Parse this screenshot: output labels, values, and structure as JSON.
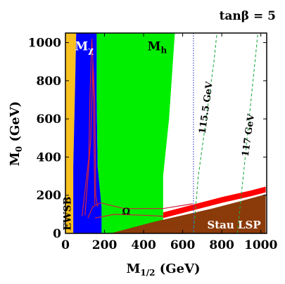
{
  "chart_data": {
    "type": "area",
    "title": "tanβ = 5",
    "xlabel": "M1/2 (GeV)",
    "ylabel": "M0 (GeV)",
    "xlim": [
      0,
      1030
    ],
    "ylim": [
      0,
      1050
    ],
    "x_ticks": [
      0,
      200,
      400,
      600,
      800,
      1000
    ],
    "y_ticks": [
      0,
      200,
      400,
      600,
      800,
      1000
    ],
    "x_tick_labels": [
      "0",
      "200",
      "400",
      "600",
      "800",
      "1000"
    ],
    "y_tick_labels": [
      "0",
      "200",
      "400",
      "600",
      "800",
      "1000"
    ],
    "grid": false,
    "colors": {
      "ewsb": "#f8c020",
      "m_chi": "#0000ff",
      "m_h": "#00ee00",
      "omega_band": "#ff0000",
      "stau_lsp": "#8b3a0a",
      "red_contour": "#d02040",
      "higgs_dashed": "#22aa44",
      "lep_line": "#4444cc"
    },
    "regions": [
      {
        "id": "ewsb",
        "label": "EWSB",
        "polygon": [
          [
            0,
            0
          ],
          [
            40,
            0
          ],
          [
            40,
            350
          ],
          [
            48,
            700
          ],
          [
            55,
            1050
          ],
          [
            0,
            1050
          ]
        ]
      },
      {
        "id": "m_chi",
        "label": "M",
        "label_sub": "χ",
        "polygon": [
          [
            40,
            0
          ],
          [
            185,
            0
          ],
          [
            185,
            140
          ],
          [
            165,
            350
          ],
          [
            160,
            700
          ],
          [
            160,
            1050
          ],
          [
            55,
            1050
          ],
          [
            48,
            700
          ],
          [
            40,
            350
          ]
        ]
      },
      {
        "id": "m_h",
        "label": "M",
        "label_sub": "h",
        "polygon": [
          [
            185,
            0
          ],
          [
            500,
            0
          ],
          [
            500,
            300
          ],
          [
            530,
            600
          ],
          [
            550,
            900
          ],
          [
            560,
            1050
          ],
          [
            160,
            1050
          ],
          [
            160,
            700
          ],
          [
            165,
            350
          ],
          [
            185,
            140
          ]
        ]
      },
      {
        "id": "omega_band",
        "label": "",
        "polygon": [
          [
            500,
            110
          ],
          [
            650,
            150
          ],
          [
            800,
            190
          ],
          [
            950,
            225
          ],
          [
            1025,
            245
          ],
          [
            1025,
            215
          ],
          [
            950,
            195
          ],
          [
            800,
            160
          ],
          [
            650,
            120
          ],
          [
            500,
            80
          ]
        ]
      },
      {
        "id": "stau_lsp",
        "label": "Stau LSP",
        "polygon": [
          [
            230,
            0
          ],
          [
            1025,
            0
          ],
          [
            1025,
            205
          ],
          [
            900,
            170
          ],
          [
            750,
            130
          ],
          [
            600,
            95
          ],
          [
            450,
            60
          ],
          [
            340,
            30
          ]
        ]
      }
    ],
    "contours": [
      {
        "id": "omega_contour",
        "label": "Ω",
        "points": [
          [
            115,
            80
          ],
          [
            140,
            140
          ],
          [
            180,
            160
          ],
          [
            300,
            130
          ],
          [
            500,
            130
          ],
          [
            650,
            155
          ]
        ]
      },
      {
        "id": "omega_contour_lower",
        "label": "",
        "points": [
          [
            150,
            80
          ],
          [
            250,
            100
          ],
          [
            400,
            95
          ],
          [
            500,
            90
          ]
        ]
      },
      {
        "id": "m_chi_contour",
        "label": "",
        "points": [
          [
            85,
            90
          ],
          [
            120,
            400
          ],
          [
            125,
            700
          ],
          [
            135,
            1020
          ],
          [
            150,
            700
          ],
          [
            155,
            200
          ],
          [
            165,
            140
          ]
        ]
      },
      {
        "id": "m_chi_contour_inner",
        "label": "",
        "points": [
          [
            100,
            95
          ],
          [
            130,
            500
          ],
          [
            140,
            900
          ],
          [
            145,
            600
          ],
          [
            150,
            150
          ]
        ]
      },
      {
        "id": "mh_115_5",
        "label": "115.5 GeV",
        "points": [
          [
            655,
            0
          ],
          [
            680,
            300
          ],
          [
            720,
            600
          ],
          [
            760,
            900
          ],
          [
            775,
            1050
          ]
        ]
      },
      {
        "id": "mh_117",
        "label": "117 GeV",
        "points": [
          [
            880,
            0
          ],
          [
            910,
            300
          ],
          [
            940,
            600
          ],
          [
            970,
            900
          ],
          [
            985,
            1050
          ]
        ]
      },
      {
        "id": "lep_bound",
        "label": "",
        "points": [
          [
            655,
            0
          ],
          [
            655,
            1050
          ]
        ]
      }
    ]
  }
}
